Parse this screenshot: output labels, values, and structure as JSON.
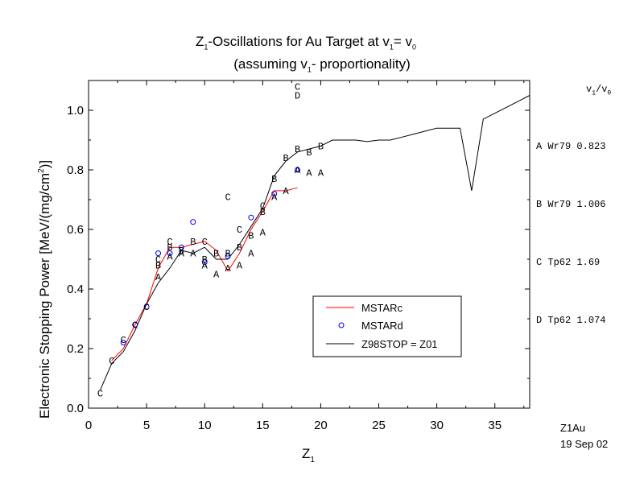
{
  "title_line1": {
    "a": "Z",
    "a_sub": "1",
    "b": "-Oscillations for Au Target at v",
    "b_sub": "1",
    "c": "= v",
    "c_sub": "0"
  },
  "title_line2": {
    "a": "(assuming v",
    "a_sub": "1",
    "b": "- proportionality)"
  },
  "ylabel": {
    "a": "Electronic Stopping Power [MeV/(mg/cm",
    "sup": "2",
    "b": ")]"
  },
  "xlabel": {
    "a": "Z",
    "sub": "1"
  },
  "side_legend": {
    "header": {
      "a": "v",
      "a_sub": "1",
      "slash": "/v",
      "b_sub": "0"
    },
    "rows": [
      {
        "marker": "A",
        "source": "Wr79",
        "ratio": "0.823"
      },
      {
        "marker": "B",
        "source": "Wr79",
        "ratio": "1.006"
      },
      {
        "marker": "C",
        "source": "Tp62",
        "ratio": "1.69"
      },
      {
        "marker": "D",
        "source": "Tp62",
        "ratio": "1.074"
      }
    ]
  },
  "footer": {
    "id": "Z1Au",
    "date": "19 Sep 02"
  },
  "chart_data": {
    "type": "line",
    "xlim": [
      0,
      38
    ],
    "ylim": [
      0,
      1.1
    ],
    "xticks": [
      "0",
      "5",
      "10",
      "15",
      "20",
      "25",
      "30",
      "35"
    ],
    "yticks": [
      "0.0",
      "0.2",
      "0.4",
      "0.6",
      "0.8",
      "1.0"
    ],
    "xtick_values": [
      0,
      5,
      10,
      15,
      20,
      25,
      30,
      35
    ],
    "ytick_values": [
      0,
      0.2,
      0.4,
      0.6,
      0.8,
      1.0
    ],
    "legend": {
      "position": "lower-right",
      "entries": [
        "MSTARc",
        "MSTARd",
        "Z98STOP = Z01"
      ]
    },
    "colors": {
      "MSTARc": "#ff0000",
      "MSTARd": "#0000ff",
      "Z98STOP": "#000000"
    },
    "series": [
      {
        "name": "MSTARc",
        "style": "line",
        "x": [
          2,
          3,
          4,
          5,
          6,
          7,
          8,
          9,
          10,
          11,
          12,
          13,
          14,
          15,
          16,
          17,
          18
        ],
        "y": [
          0.16,
          0.2,
          0.28,
          0.35,
          0.47,
          0.54,
          0.54,
          0.55,
          0.56,
          0.53,
          0.46,
          0.52,
          0.6,
          0.66,
          0.73,
          0.73,
          0.74
        ]
      },
      {
        "name": "MSTARd",
        "style": "marker",
        "x": [
          3,
          4,
          5,
          6,
          7,
          8,
          9,
          10,
          12,
          14,
          16,
          18
        ],
        "y": [
          0.22,
          0.28,
          0.34,
          0.52,
          0.52,
          0.54,
          0.625,
          0.49,
          0.51,
          0.64,
          0.72,
          0.8
        ]
      },
      {
        "name": "Z98STOP = Z01",
        "style": "line",
        "x": [
          1,
          2,
          3,
          4,
          5,
          6,
          7,
          8,
          9,
          10,
          11,
          12,
          13,
          14,
          15,
          16,
          17,
          18,
          19,
          20,
          21,
          22,
          23,
          24,
          25,
          26,
          27,
          28,
          29,
          30,
          31,
          32,
          33,
          34,
          35,
          36,
          37,
          38
        ],
        "y": [
          0.06,
          0.15,
          0.19,
          0.26,
          0.35,
          0.42,
          0.47,
          0.53,
          0.52,
          0.54,
          0.5,
          0.5,
          0.55,
          0.61,
          0.67,
          0.78,
          0.83,
          0.86,
          0.87,
          0.88,
          0.9,
          0.9,
          0.9,
          0.895,
          0.9,
          0.9,
          0.91,
          0.92,
          0.93,
          0.94,
          0.94,
          0.94,
          0.73,
          0.97,
          0.99,
          1.01,
          1.03,
          1.05
        ]
      }
    ],
    "letter_points": [
      {
        "label": "C",
        "x": 1,
        "y": 0.05
      },
      {
        "label": "C",
        "x": 2,
        "y": 0.16
      },
      {
        "label": "C",
        "x": 3,
        "y": 0.23
      },
      {
        "label": "C",
        "x": 4,
        "y": 0.28
      },
      {
        "label": "C",
        "x": 5,
        "y": 0.34
      },
      {
        "label": "A",
        "x": 6,
        "y": 0.44
      },
      {
        "label": "B",
        "x": 6,
        "y": 0.48
      },
      {
        "label": "C",
        "x": 6,
        "y": 0.5
      },
      {
        "label": "A",
        "x": 7,
        "y": 0.51
      },
      {
        "label": "B",
        "x": 7,
        "y": 0.54
      },
      {
        "label": "C",
        "x": 7,
        "y": 0.56
      },
      {
        "label": "A",
        "x": 8,
        "y": 0.52
      },
      {
        "label": "B",
        "x": 8,
        "y": 0.53
      },
      {
        "label": "A",
        "x": 9,
        "y": 0.52
      },
      {
        "label": "B",
        "x": 9,
        "y": 0.56
      },
      {
        "label": "A",
        "x": 10,
        "y": 0.48
      },
      {
        "label": "B",
        "x": 10,
        "y": 0.5
      },
      {
        "label": "C",
        "x": 10,
        "y": 0.56
      },
      {
        "label": "A",
        "x": 11,
        "y": 0.45
      },
      {
        "label": "B",
        "x": 11,
        "y": 0.52
      },
      {
        "label": "A",
        "x": 12,
        "y": 0.47
      },
      {
        "label": "B",
        "x": 12,
        "y": 0.52
      },
      {
        "label": "C",
        "x": 12,
        "y": 0.71
      },
      {
        "label": "A",
        "x": 13,
        "y": 0.48
      },
      {
        "label": "B",
        "x": 13,
        "y": 0.54
      },
      {
        "label": "C",
        "x": 13,
        "y": 0.6
      },
      {
        "label": "A",
        "x": 14,
        "y": 0.52
      },
      {
        "label": "B",
        "x": 14,
        "y": 0.58
      },
      {
        "label": "A",
        "x": 15,
        "y": 0.59
      },
      {
        "label": "B",
        "x": 15,
        "y": 0.66
      },
      {
        "label": "C",
        "x": 15,
        "y": 0.68
      },
      {
        "label": "A",
        "x": 16,
        "y": 0.71
      },
      {
        "label": "B",
        "x": 16,
        "y": 0.77
      },
      {
        "label": "A",
        "x": 17,
        "y": 0.73
      },
      {
        "label": "B",
        "x": 17,
        "y": 0.84
      },
      {
        "label": "A",
        "x": 18,
        "y": 0.8
      },
      {
        "label": "B",
        "x": 18,
        "y": 0.87
      },
      {
        "label": "D",
        "x": 18,
        "y": 1.05
      },
      {
        "label": "C",
        "x": 18,
        "y": 1.08
      },
      {
        "label": "A",
        "x": 19,
        "y": 0.79
      },
      {
        "label": "B",
        "x": 19,
        "y": 0.86
      },
      {
        "label": "A",
        "x": 20,
        "y": 0.79
      },
      {
        "label": "B",
        "x": 20,
        "y": 0.88
      }
    ]
  }
}
